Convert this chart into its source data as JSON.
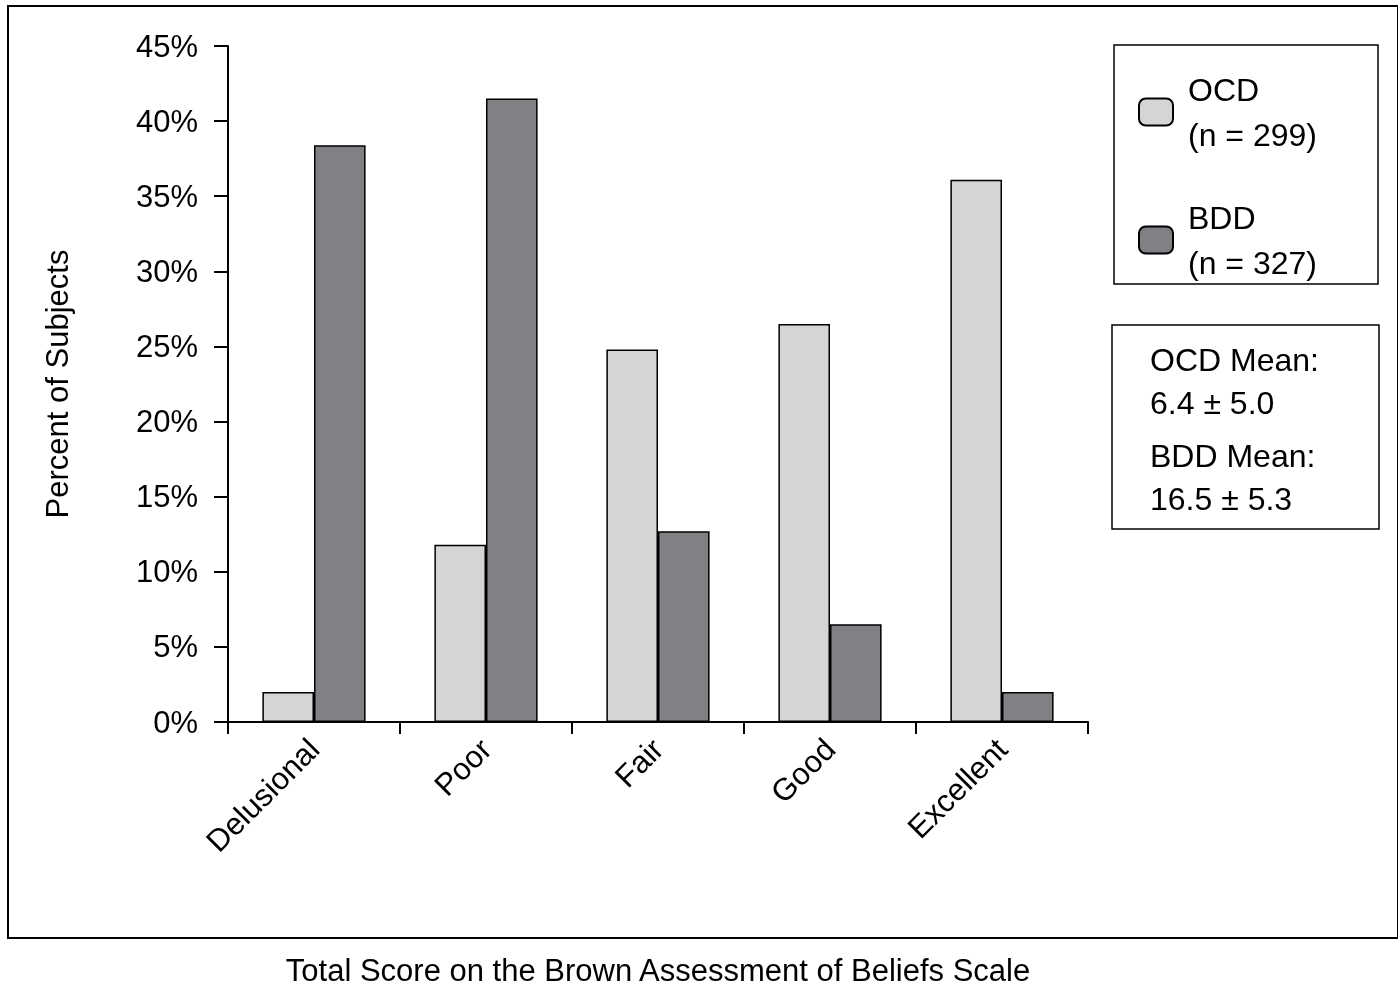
{
  "chart_data": {
    "type": "bar",
    "xlabel": "Total Score on the Brown Assessment of Beliefs Scale",
    "ylabel": "Percent of Subjects",
    "categories": [
      "Delusional",
      "Poor",
      "Fair",
      "Good",
      "Excellent"
    ],
    "series": [
      {
        "name": "OCD\n(n = 299)",
        "color": "#d4d5d7",
        "values": [
          2.0,
          11.8,
          24.8,
          26.5,
          36.1
        ]
      },
      {
        "name": "BDD\n(n = 327)",
        "color": "#808184",
        "values": [
          38.4,
          41.5,
          12.7,
          6.5,
          2.0
        ]
      }
    ],
    "ylim": [
      0,
      45
    ],
    "yticks": [
      {
        "value": 0,
        "label": "0%"
      },
      {
        "value": 5,
        "label": "5%"
      },
      {
        "value": 10,
        "label": "10%"
      },
      {
        "value": 15,
        "label": "15%"
      },
      {
        "value": 20,
        "label": "20%"
      },
      {
        "value": 25,
        "label": "25%"
      },
      {
        "value": 30,
        "label": "30%"
      },
      {
        "value": 35,
        "label": "35%"
      },
      {
        "value": 40,
        "label": "40%"
      },
      {
        "value": 45,
        "label": "45%"
      }
    ],
    "annotations": [
      "OCD Mean:\n6.4 ± 5.0",
      "BDD Mean:\n16.5 ± 5.3"
    ],
    "grid": false,
    "legend": "top right"
  }
}
